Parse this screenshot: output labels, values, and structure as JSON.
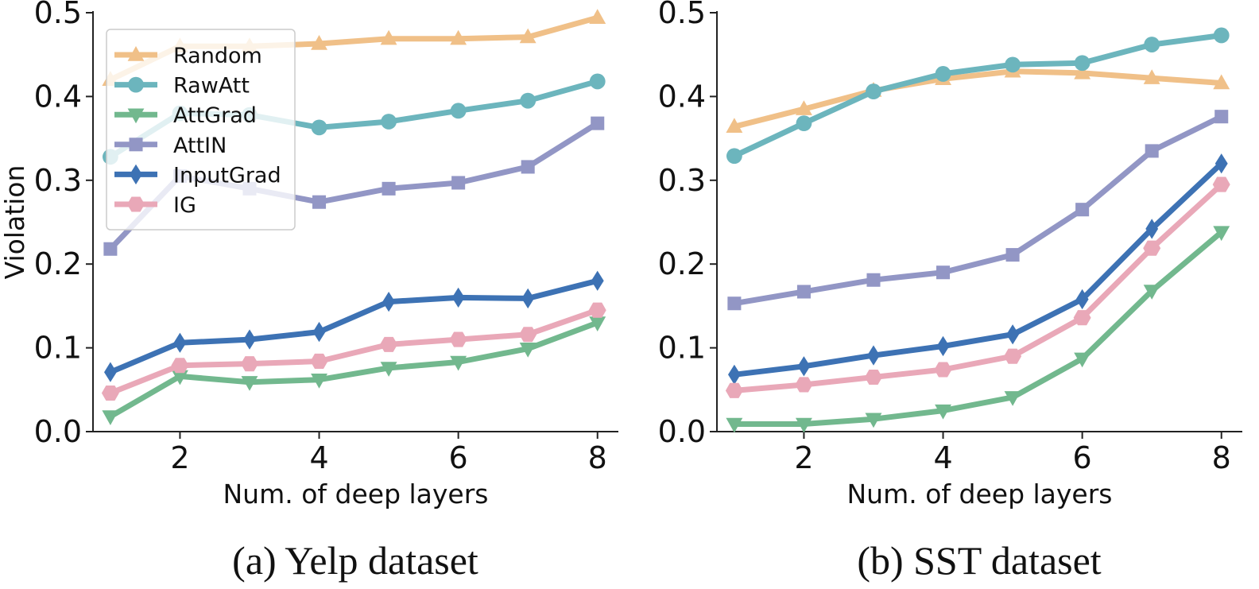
{
  "chart_data": [
    {
      "type": "line",
      "caption": "(a) Yelp dataset",
      "xlabel": "Num. of deep layers",
      "ylabel": "Violation",
      "x": [
        1,
        2,
        3,
        4,
        5,
        6,
        7,
        8
      ],
      "xlim": [
        0.75,
        8.3
      ],
      "ylim": [
        0.0,
        0.5
      ],
      "xticks": [
        "2",
        "4",
        "6",
        "8"
      ],
      "yticks": [
        "0.0",
        "0.1",
        "0.2",
        "0.3",
        "0.4",
        "0.5"
      ],
      "grid": false,
      "legend": "top-left",
      "series": [
        {
          "name": "Random",
          "marker": "triangle-up",
          "color": "#f0c088",
          "values": [
            0.42,
            0.46,
            0.46,
            0.463,
            0.469,
            0.469,
            0.471,
            0.494
          ]
        },
        {
          "name": "RawAtt",
          "marker": "circle",
          "color": "#6cb5bd",
          "values": [
            0.328,
            0.38,
            0.378,
            0.363,
            0.37,
            0.383,
            0.395,
            0.418
          ]
        },
        {
          "name": "AttGrad",
          "marker": "triangle-down",
          "color": "#72b88e",
          "values": [
            0.018,
            0.066,
            0.059,
            0.062,
            0.076,
            0.083,
            0.099,
            0.13
          ]
        },
        {
          "name": "AttIN",
          "marker": "square",
          "color": "#9296c5",
          "values": [
            0.218,
            0.305,
            0.29,
            0.274,
            0.29,
            0.297,
            0.316,
            0.368
          ]
        },
        {
          "name": "InputGrad",
          "marker": "diamond",
          "color": "#3d72b4",
          "values": [
            0.071,
            0.106,
            0.11,
            0.119,
            0.155,
            0.16,
            0.159,
            0.18
          ]
        },
        {
          "name": "IG",
          "marker": "hexagon",
          "color": "#e9a8b8",
          "values": [
            0.046,
            0.079,
            0.081,
            0.084,
            0.104,
            0.11,
            0.116,
            0.145
          ]
        }
      ]
    },
    {
      "type": "line",
      "caption": "(b) SST dataset",
      "xlabel": "Num. of deep layers",
      "ylabel": "",
      "x": [
        1,
        2,
        3,
        4,
        5,
        6,
        7,
        8
      ],
      "xlim": [
        0.75,
        8.3
      ],
      "ylim": [
        0.0,
        0.5
      ],
      "xticks": [
        "2",
        "4",
        "6",
        "8"
      ],
      "yticks": [
        "0.0",
        "0.1",
        "0.2",
        "0.3",
        "0.4",
        "0.5"
      ],
      "grid": false,
      "legend": "none",
      "series": [
        {
          "name": "Random",
          "marker": "triangle-up",
          "color": "#f0c088",
          "values": [
            0.364,
            0.385,
            0.407,
            0.421,
            0.43,
            0.428,
            0.422,
            0.416
          ]
        },
        {
          "name": "RawAtt",
          "marker": "circle",
          "color": "#6cb5bd",
          "values": [
            0.329,
            0.368,
            0.406,
            0.427,
            0.438,
            0.44,
            0.462,
            0.473
          ]
        },
        {
          "name": "AttGrad",
          "marker": "triangle-down",
          "color": "#72b88e",
          "values": [
            0.009,
            0.009,
            0.015,
            0.025,
            0.041,
            0.087,
            0.168,
            0.238
          ]
        },
        {
          "name": "AttIN",
          "marker": "square",
          "color": "#9296c5",
          "values": [
            0.153,
            0.167,
            0.181,
            0.19,
            0.211,
            0.265,
            0.335,
            0.376
          ]
        },
        {
          "name": "InputGrad",
          "marker": "diamond",
          "color": "#3d72b4",
          "values": [
            0.068,
            0.078,
            0.091,
            0.102,
            0.116,
            0.158,
            0.242,
            0.32
          ]
        },
        {
          "name": "IG",
          "marker": "hexagon",
          "color": "#e9a8b8",
          "values": [
            0.049,
            0.056,
            0.065,
            0.074,
            0.09,
            0.136,
            0.219,
            0.295
          ]
        }
      ]
    }
  ]
}
